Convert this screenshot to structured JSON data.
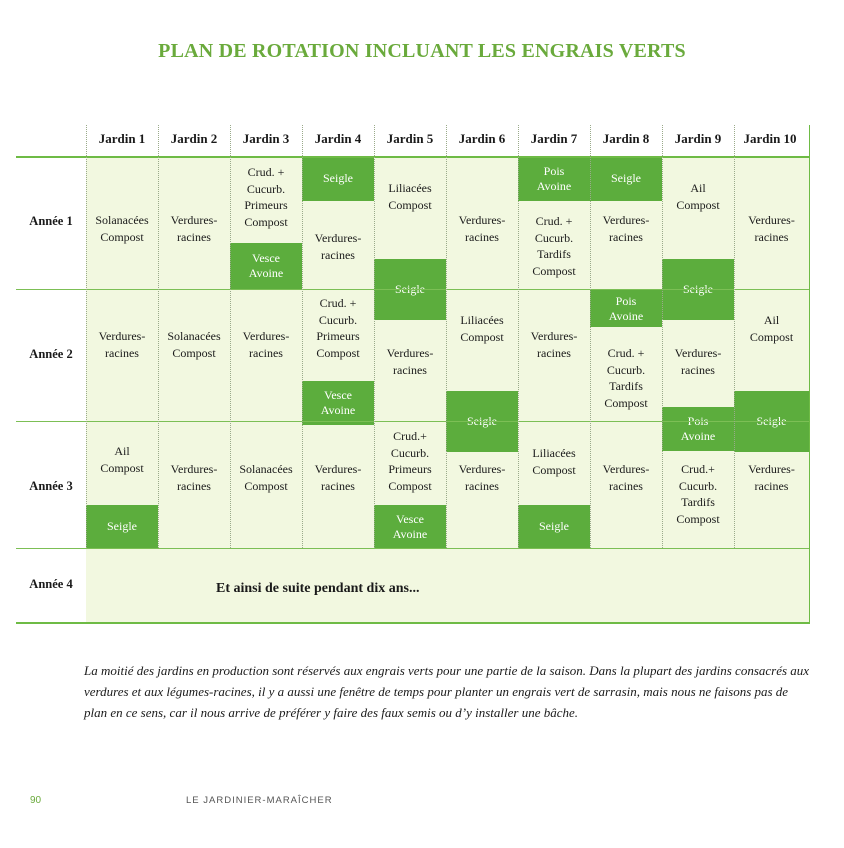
{
  "title": "PLAN DE ROTATION INCLUANT LES ENGRAIS VERTS",
  "columns": [
    "Jardin 1",
    "Jardin 2",
    "Jardin 3",
    "Jardin 4",
    "Jardin 5",
    "Jardin 6",
    "Jardin 7",
    "Jardin 8",
    "Jardin 9",
    "Jardin 10"
  ],
  "rows": [
    "Année 1",
    "Année 2",
    "Année 3",
    "Année 4"
  ],
  "crops": {
    "j1": {
      "y1": "Solanacées\nCompost",
      "y2": "Verdures-\nracines",
      "y3": "Ail\nCompost"
    },
    "j2": {
      "y1": "Verdures-\nracines",
      "y2": "Solanacées\nCompost",
      "y3": "Verdures-\nracines"
    },
    "j3": {
      "y1": "Crud. +\nCucurb.\nPrimeurs\nCompost",
      "y2": "Verdures-\nracines",
      "y3": "Solanacées\nCompost"
    },
    "j4": {
      "y1": "Verdures-\nracines",
      "y2": "Crud. +\nCucurb.\nPrimeurs\nCompost",
      "y3": "Verdures-\nracines"
    },
    "j5": {
      "y1": "Liliacées\nCompost",
      "y2": "Verdures-\nracines",
      "y3": "Crud.+\nCucurb.\nPrimeurs\nCompost"
    },
    "j6": {
      "y1": "Verdures-\nracines",
      "y2": "Liliacées\nCompost",
      "y3": "Verdures-\nracines"
    },
    "j7": {
      "y1": "Crud. +\nCucurb.\nTardifs\nCompost",
      "y2": "Verdures-\nracines",
      "y3": "Liliacées\nCompost"
    },
    "j8": {
      "y1": "Verdures-\nracines",
      "y2": "Crud. +\nCucurb.\nTardifs\nCompost",
      "y3": "Verdures-\nracines"
    },
    "j9": {
      "y1": "Ail\nCompost",
      "y2": "Verdures-\nracines",
      "y3": "Crud.+\nCucurb.\nTardifs\nCompost"
    },
    "j10": {
      "y1": "Verdures-\nracines",
      "y2": "Ail\nCompost",
      "y3": "Verdures-\nracines"
    }
  },
  "green_manures": {
    "j1_y3": "Seigle",
    "j3_y1": "Vesce\nAvoine",
    "j4_y1": "Seigle",
    "j4_y2": "Vesce\nAvoine",
    "j5_y1": "Seigle",
    "j5_y3": "Vesce\nAvoine",
    "j6_y2": "Seigle",
    "j7_y1": "Pois\nAvoine",
    "j7_y3": "Seigle",
    "j8_y1": "Seigle",
    "j8_y2": "Pois\nAvoine",
    "j9_y1": "Seigle",
    "j9_y2": "Pois\nAvoine",
    "j10_y2": "Seigle"
  },
  "continuation": "Et ainsi de suite pendant dix ans...",
  "caption": "La moitié des jardins en production sont réservés aux engrais verts pour une partie de la saison. Dans la plupart des jardins consacrés aux verdures et aux légumes-racines, il y a aussi une fenêtre de temps pour planter un engrais vert de sarrasin, mais nous ne faisons pas de plan en ce sens, car il nous arrive de préférer y faire des faux semis ou d’y installer une bâche.",
  "page_number": "90",
  "book_title": "LE JARDINIER-MARAÎCHER",
  "colors": {
    "title": "#6aaa3c",
    "block": "#5cad3d",
    "cell_bg": "#f2f8e0",
    "line": "#6ebb45"
  }
}
